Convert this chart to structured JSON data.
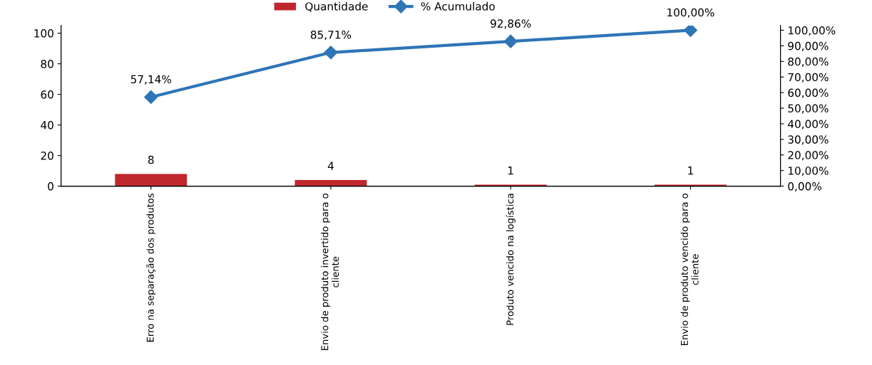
{
  "chart_data": {
    "type": "bar",
    "categories": [
      "Erro na separação dos produtos",
      "Envio de produto invertido para o\ncliente",
      "Produto vencido na logística",
      "Envio de produto vencido para o\ncliente"
    ],
    "series": [
      {
        "name": "Quantidade",
        "color": "#c0272d",
        "values": [
          8,
          4,
          1,
          1
        ],
        "value_labels": [
          "8",
          "4",
          "1",
          "1"
        ]
      },
      {
        "name": "% Acumulado",
        "type": "line",
        "axis": "y2",
        "color": "#2e75b6",
        "values": [
          57.14,
          85.71,
          92.86,
          100
        ],
        "value_labels": [
          "57,14%",
          "85,71%",
          "92,86%",
          "100,00%"
        ]
      }
    ],
    "ylim": [
      0,
      105
    ],
    "yticks": [
      0,
      20,
      40,
      60,
      80,
      100
    ],
    "y2lim": [
      0,
      103
    ],
    "y2ticks": [
      {
        "value": 0,
        "label": "0,00%"
      },
      {
        "value": 10,
        "label": "10,00%"
      },
      {
        "value": 20,
        "label": "20,00%"
      },
      {
        "value": 30,
        "label": "30,00%"
      },
      {
        "value": 40,
        "label": "40,00%"
      },
      {
        "value": 50,
        "label": "50,00%"
      },
      {
        "value": 60,
        "label": "60,00%"
      },
      {
        "value": 70,
        "label": "70,00%"
      },
      {
        "value": 80,
        "label": "80,00%"
      },
      {
        "value": 90,
        "label": "90,00%"
      },
      {
        "value": 100,
        "label": "100,00%"
      }
    ],
    "marker": "diamond",
    "legend": "top",
    "grid": false
  }
}
